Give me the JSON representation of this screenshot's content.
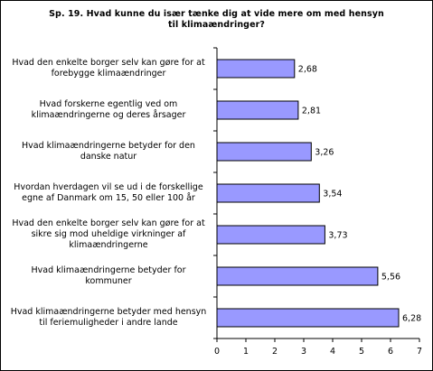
{
  "chart_data": {
    "type": "bar",
    "orientation": "horizontal",
    "title_lines": [
      "Sp. 19. Hvad kunne du især tænke dig at vide mere om med hensyn",
      "til klimaændringer?"
    ],
    "categories": [
      [
        "Hvad den enkelte borger selv kan gøre for at",
        "forebygge klimaændringer"
      ],
      [
        "Hvad forskerne egentlig ved om",
        "klimaændringerne og deres årsager"
      ],
      [
        "Hvad klimaændringerne betyder for den",
        "danske natur"
      ],
      [
        "Hvordan hverdagen vil se ud i de forskellige",
        "egne af Danmark om 15, 50 eller 100 år"
      ],
      [
        "Hvad den enkelte borger selv kan gøre for at",
        "sikre sig mod uheldige virkninger af",
        "klimaændringerne"
      ],
      [
        "Hvad klimaændringerne betyder for",
        "kommuner"
      ],
      [
        "Hvad klimaændringerne betyder med hensyn",
        "til feriemuligheder i andre lande"
      ]
    ],
    "values": [
      2.68,
      2.81,
      3.26,
      3.54,
      3.73,
      5.56,
      6.28
    ],
    "value_labels": [
      "2,68",
      "2,81",
      "3,26",
      "3,54",
      "3,73",
      "5,56",
      "6,28"
    ],
    "xlim": [
      0,
      7
    ],
    "xticks": [
      "0",
      "1",
      "2",
      "3",
      "4",
      "5",
      "6",
      "7"
    ],
    "grid": false,
    "legend": "none",
    "bar_fill": "#9999ff",
    "bar_stroke": "#000000"
  }
}
